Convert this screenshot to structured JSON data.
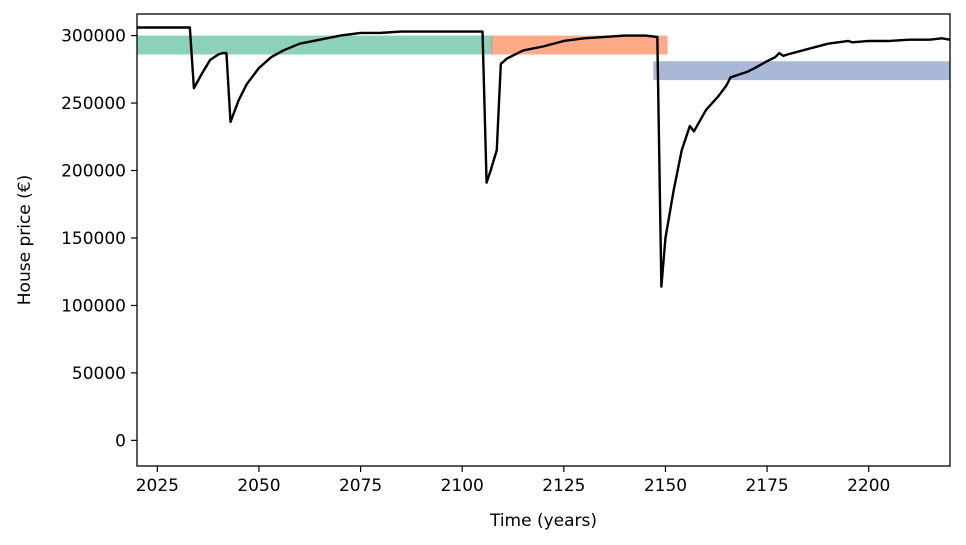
{
  "chart_data": {
    "type": "line",
    "title": "",
    "xlabel": "Time (years)",
    "ylabel": "House price (€)",
    "xlim": [
      2020,
      2220
    ],
    "ylim": [
      -19000,
      316000
    ],
    "grid": false,
    "xticks": [
      2025,
      2050,
      2075,
      2100,
      2125,
      2150,
      2175,
      2200
    ],
    "yticks": [
      0,
      50000,
      100000,
      150000,
      200000,
      250000,
      300000
    ],
    "bands": [
      {
        "x_start": 2020,
        "x_end": 2107.5,
        "y_low": 286000,
        "y_high": 300000,
        "color": "#66c2a5"
      },
      {
        "x_start": 2107,
        "x_end": 2150.5,
        "y_low": 286000,
        "y_high": 300000,
        "color": "#fc8d62"
      },
      {
        "x_start": 2147,
        "x_end": 2220,
        "y_low": 267000,
        "y_high": 281000,
        "color": "#8da0cb"
      }
    ],
    "series": [
      {
        "color": "#000000",
        "x": [
          2020,
          2025,
          2030,
          2033,
          2034,
          2036,
          2038,
          2040,
          2041,
          2042,
          2043,
          2045,
          2047,
          2050,
          2053,
          2056,
          2060,
          2065,
          2070,
          2075,
          2080,
          2085,
          2090,
          2095,
          2100,
          2105,
          2106,
          2107,
          2108.5,
          2109.5,
          2111,
          2115,
          2120,
          2125,
          2130,
          2135,
          2140,
          2145,
          2148,
          2149,
          2150,
          2152,
          2154,
          2156,
          2157,
          2160,
          2163,
          2165,
          2166,
          2170,
          2172,
          2175,
          2177,
          2178,
          2179,
          2180,
          2185,
          2190,
          2195,
          2196,
          2200,
          2205,
          2210,
          2215,
          2218,
          2220
        ],
        "y": [
          306000,
          306000,
          306000,
          306000,
          261000,
          272000,
          282000,
          286000,
          287000,
          287000,
          236000,
          252000,
          264000,
          276000,
          284000,
          289000,
          294000,
          297000,
          300000,
          302000,
          302000,
          303000,
          303000,
          303000,
          303000,
          303000,
          191000,
          200000,
          215000,
          279000,
          283000,
          289000,
          292000,
          296000,
          298000,
          299000,
          300000,
          300000,
          299000,
          114000,
          150000,
          185000,
          215000,
          233000,
          229000,
          245000,
          255000,
          263000,
          269000,
          273000,
          276000,
          281000,
          284000,
          287000,
          285000,
          286000,
          290000,
          294000,
          296000,
          295000,
          296000,
          296000,
          297000,
          297000,
          298000,
          297000
        ]
      }
    ]
  }
}
